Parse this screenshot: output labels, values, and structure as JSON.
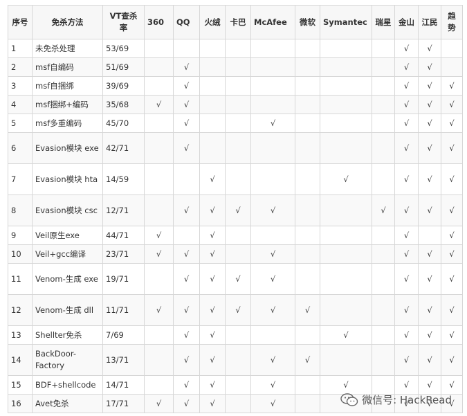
{
  "headers": [
    "序号",
    "免杀方法",
    "VT查杀率",
    "360",
    "QQ",
    "火绒",
    "卡巴",
    "McAfee",
    "微软",
    "Symantec",
    "瑞星",
    "金山",
    "江民",
    "趋势"
  ],
  "check": "√",
  "rows": [
    {
      "no": "1",
      "method": "未免杀处理",
      "vt": "53/69",
      "marks": [
        0,
        0,
        0,
        0,
        0,
        0,
        0,
        0,
        1,
        1,
        0
      ]
    },
    {
      "no": "2",
      "method": "msf自编码",
      "vt": "51/69",
      "marks": [
        0,
        1,
        0,
        0,
        0,
        0,
        0,
        0,
        1,
        1,
        0
      ]
    },
    {
      "no": "3",
      "method": "msf自捆绑",
      "vt": "39/69",
      "marks": [
        0,
        1,
        0,
        0,
        0,
        0,
        0,
        0,
        1,
        1,
        1
      ]
    },
    {
      "no": "4",
      "method": "msf捆绑+编码",
      "vt": "35/68",
      "marks": [
        1,
        1,
        0,
        0,
        0,
        0,
        0,
        0,
        1,
        1,
        1
      ]
    },
    {
      "no": "5",
      "method": "msf多重编码",
      "vt": "45/70",
      "marks": [
        0,
        1,
        0,
        0,
        1,
        0,
        0,
        0,
        1,
        1,
        1
      ]
    },
    {
      "no": "6",
      "method": "Evasion模块 exe",
      "vt": "42/71",
      "marks": [
        0,
        1,
        0,
        0,
        0,
        0,
        0,
        0,
        1,
        1,
        1
      ]
    },
    {
      "no": "7",
      "method": "Evasion模块 hta",
      "vt": "14/59",
      "marks": [
        0,
        0,
        1,
        0,
        0,
        0,
        1,
        0,
        1,
        1,
        1
      ]
    },
    {
      "no": "8",
      "method": "Evasion模块 csc",
      "vt": "12/71",
      "marks": [
        0,
        1,
        1,
        1,
        1,
        0,
        0,
        1,
        1,
        1,
        1
      ]
    },
    {
      "no": "9",
      "method": "Veil原生exe",
      "vt": "44/71",
      "marks": [
        1,
        0,
        1,
        0,
        0,
        0,
        0,
        0,
        1,
        0,
        1
      ]
    },
    {
      "no": "10",
      "method": "Veil+gcc编译",
      "vt": "23/71",
      "marks": [
        1,
        1,
        1,
        0,
        1,
        0,
        0,
        0,
        1,
        1,
        1
      ]
    },
    {
      "no": "11",
      "method": "Venom-生成 exe",
      "vt": "19/71",
      "marks": [
        0,
        1,
        1,
        1,
        1,
        0,
        0,
        0,
        1,
        1,
        1
      ]
    },
    {
      "no": "12",
      "method": "Venom-生成 dll",
      "vt": "11/71",
      "marks": [
        1,
        1,
        1,
        1,
        1,
        1,
        0,
        0,
        1,
        1,
        1
      ]
    },
    {
      "no": "13",
      "method": "Shellter免杀",
      "vt": "7/69",
      "marks": [
        0,
        1,
        1,
        0,
        0,
        0,
        1,
        0,
        1,
        1,
        1
      ]
    },
    {
      "no": "14",
      "method": "BackDoor-Factory",
      "vt": "13/71",
      "marks": [
        0,
        1,
        1,
        0,
        1,
        1,
        0,
        0,
        1,
        1,
        1
      ]
    },
    {
      "no": "15",
      "method": "BDF+shellcode",
      "vt": "14/71",
      "marks": [
        0,
        1,
        1,
        0,
        1,
        0,
        1,
        0,
        1,
        1,
        1
      ]
    },
    {
      "no": "16",
      "method": "Avet免杀",
      "vt": "17/71",
      "marks": [
        1,
        1,
        1,
        0,
        1,
        0,
        0,
        0,
        1,
        1,
        1
      ]
    }
  ],
  "watermark": {
    "icon": "wechat-icon",
    "text": "微信号: HackRead"
  }
}
